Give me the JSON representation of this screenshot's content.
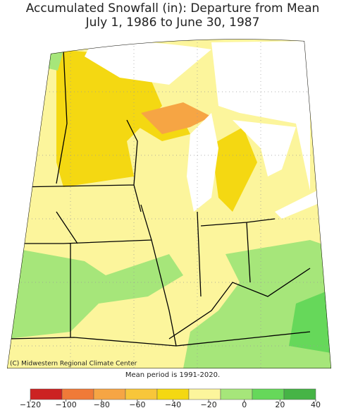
{
  "header": {
    "title": "Accumulated Snowfall (in): Departure from Mean",
    "subtitle": "July 1, 1986 to June 30, 1987"
  },
  "map": {
    "credit": "(C) Midwestern Regional Climate Center",
    "note": "Mean period is 1991-2020."
  },
  "legend": {
    "ticks": [
      {
        "value": -120,
        "label": "−120"
      },
      {
        "value": -100,
        "label": "−100"
      },
      {
        "value": -80,
        "label": "−80"
      },
      {
        "value": -60,
        "label": "−60"
      },
      {
        "value": -40,
        "label": "−40"
      },
      {
        "value": -20,
        "label": "−20"
      },
      0,
      20,
      40
    ],
    "colors": [
      "#cc2222",
      "#f07a38",
      "#f6a544",
      "#f8c63a",
      "#f4d812",
      "#fcf59c",
      "#a6e67a",
      "#66d85a",
      "#46b446"
    ]
  }
}
